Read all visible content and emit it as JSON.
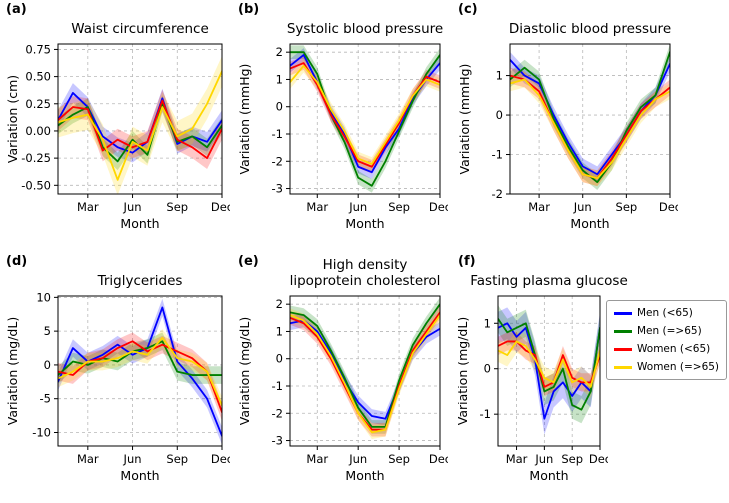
{
  "legend": {
    "items": [
      {
        "label": "Men (<65)",
        "color": "#0000ff"
      },
      {
        "label": "Men (=>65)",
        "color": "#008000"
      },
      {
        "label": "Women (<65)",
        "color": "#ff0000"
      },
      {
        "label": "Women (=>65)",
        "color": "#ffd700"
      }
    ]
  },
  "chart_data": [
    {
      "type": "line",
      "panel": "(a)",
      "title": "Waist circumference",
      "ylabel": "Variation (cm)",
      "xlabel": "Month",
      "ylim": [
        -0.58,
        0.8
      ],
      "ytick_values": [
        -0.5,
        -0.25,
        0.0,
        0.25,
        0.5,
        0.75
      ],
      "ytick_labels": [
        "-0.50",
        "-0.25",
        "0.00",
        "0.25",
        "0.50",
        "0.75"
      ],
      "x_categories": [
        "Jan",
        "Feb",
        "Mar",
        "Apr",
        "May",
        "Jun",
        "Jul",
        "Aug",
        "Sep",
        "Oct",
        "Nov",
        "Dec"
      ],
      "xtick_positions": [
        2,
        5,
        8,
        11
      ],
      "xtick_labels": [
        "Mar",
        "Jun",
        "Sep",
        "Dec"
      ],
      "grid": true,
      "series": [
        {
          "name": "Men (<65)",
          "color": "#0000ff",
          "band": 0.09,
          "values": [
            0.1,
            0.35,
            0.22,
            -0.05,
            -0.15,
            -0.2,
            -0.1,
            0.3,
            -0.12,
            -0.05,
            -0.1,
            0.1
          ]
        },
        {
          "name": "Men (=>65)",
          "color": "#008000",
          "band": 0.08,
          "values": [
            0.05,
            0.15,
            0.22,
            -0.15,
            -0.28,
            -0.08,
            -0.22,
            0.25,
            -0.1,
            -0.05,
            -0.15,
            0.05
          ]
        },
        {
          "name": "Women (<65)",
          "color": "#ff0000",
          "band": 0.1,
          "values": [
            0.1,
            0.22,
            0.2,
            -0.18,
            -0.08,
            -0.15,
            -0.1,
            0.28,
            -0.08,
            -0.15,
            -0.25,
            0.02
          ]
        },
        {
          "name": "Women (=>65)",
          "color": "#ffd700",
          "band": 0.14,
          "values": [
            0.08,
            0.12,
            0.15,
            -0.08,
            -0.45,
            -0.1,
            -0.18,
            0.22,
            -0.05,
            0.02,
            0.25,
            0.55
          ]
        }
      ]
    },
    {
      "type": "line",
      "panel": "(b)",
      "title": "Systolic blood pressure",
      "ylabel": "Variation (mmHg)",
      "xlabel": "Month",
      "ylim": [
        -3.2,
        2.3
      ],
      "ytick_values": [
        -3,
        -2,
        -1,
        0,
        1,
        2
      ],
      "ytick_labels": [
        "-3",
        "-2",
        "-1",
        "0",
        "1",
        "2"
      ],
      "x_categories": [
        "Jan",
        "Feb",
        "Mar",
        "Apr",
        "May",
        "Jun",
        "Jul",
        "Aug",
        "Sep",
        "Oct",
        "Nov",
        "Dec"
      ],
      "xtick_positions": [
        2,
        5,
        8,
        11
      ],
      "xtick_labels": [
        "Mar",
        "Jun",
        "Sep",
        "Dec"
      ],
      "grid": true,
      "series": [
        {
          "name": "Men (<65)",
          "color": "#0000ff",
          "band": 0.25,
          "values": [
            1.5,
            1.9,
            0.9,
            -0.2,
            -1.0,
            -2.2,
            -2.4,
            -1.5,
            -0.8,
            0.3,
            1.0,
            1.6
          ]
        },
        {
          "name": "Men (=>65)",
          "color": "#008000",
          "band": 0.25,
          "values": [
            2.0,
            2.0,
            1.2,
            -0.3,
            -1.3,
            -2.6,
            -2.9,
            -2.0,
            -0.9,
            0.2,
            1.2,
            1.9
          ]
        },
        {
          "name": "Women (<65)",
          "color": "#ff0000",
          "band": 0.25,
          "values": [
            1.4,
            1.6,
            0.8,
            -0.3,
            -1.1,
            -2.0,
            -2.2,
            -1.4,
            -0.6,
            0.4,
            1.1,
            0.9
          ]
        },
        {
          "name": "Women (=>65)",
          "color": "#ffd700",
          "band": 0.25,
          "values": [
            0.9,
            1.5,
            0.9,
            -0.1,
            -0.9,
            -1.9,
            -2.1,
            -1.3,
            -0.5,
            0.4,
            1.0,
            0.8
          ]
        }
      ]
    },
    {
      "type": "line",
      "panel": "(c)",
      "title": "Diastolic blood pressure",
      "ylabel": "Variation (mmHg)",
      "xlabel": "Month",
      "ylim": [
        -2.0,
        1.8
      ],
      "ytick_values": [
        -2,
        -1,
        0,
        1
      ],
      "ytick_labels": [
        "-2",
        "-1",
        "0",
        "1"
      ],
      "x_categories": [
        "Jan",
        "Feb",
        "Mar",
        "Apr",
        "May",
        "Jun",
        "Jul",
        "Aug",
        "Sep",
        "Oct",
        "Nov",
        "Dec"
      ],
      "xtick_positions": [
        2,
        5,
        8,
        11
      ],
      "xtick_labels": [
        "Mar",
        "Jun",
        "Sep",
        "Dec"
      ],
      "grid": true,
      "series": [
        {
          "name": "Men (<65)",
          "color": "#0000ff",
          "band": 0.2,
          "values": [
            1.4,
            1.0,
            0.8,
            0.0,
            -0.7,
            -1.3,
            -1.5,
            -1.0,
            -0.5,
            0.1,
            0.5,
            1.3
          ]
        },
        {
          "name": "Men (=>65)",
          "color": "#008000",
          "band": 0.2,
          "values": [
            0.9,
            1.2,
            0.9,
            -0.1,
            -0.8,
            -1.4,
            -1.7,
            -1.2,
            -0.4,
            0.2,
            0.5,
            1.6
          ]
        },
        {
          "name": "Women (<65)",
          "color": "#ff0000",
          "band": 0.2,
          "values": [
            1.0,
            0.9,
            0.6,
            -0.2,
            -0.9,
            -1.5,
            -1.6,
            -1.1,
            -0.5,
            0.1,
            0.4,
            0.7
          ]
        },
        {
          "name": "Women (=>65)",
          "color": "#ffd700",
          "band": 0.2,
          "values": [
            0.8,
            0.9,
            0.5,
            -0.2,
            -0.9,
            -1.5,
            -1.6,
            -1.2,
            -0.6,
            0.0,
            0.4,
            0.6
          ]
        }
      ]
    },
    {
      "type": "line",
      "panel": "(d)",
      "title": "Triglycerides",
      "ylabel": "Variation (mg/dL)",
      "xlabel": "Month",
      "ylim": [
        -12,
        10.2
      ],
      "ytick_values": [
        -10,
        -5,
        0,
        5,
        10
      ],
      "ytick_labels": [
        "-10",
        "-5",
        "0",
        "5",
        "10"
      ],
      "x_categories": [
        "Jan",
        "Feb",
        "Mar",
        "Apr",
        "May",
        "Jun",
        "Jul",
        "Aug",
        "Sep",
        "Oct",
        "Nov",
        "Dec"
      ],
      "xtick_positions": [
        2,
        5,
        8,
        11
      ],
      "xtick_labels": [
        "Mar",
        "Jun",
        "Sep",
        "Dec"
      ],
      "grid": true,
      "series": [
        {
          "name": "Men (<65)",
          "color": "#0000ff",
          "band": 1.3,
          "values": [
            -2.5,
            2.5,
            0.5,
            1.5,
            3.0,
            1.5,
            2.5,
            8.5,
            0.5,
            -2.0,
            -5.0,
            -10.5
          ]
        },
        {
          "name": "Men (=>65)",
          "color": "#008000",
          "band": 1.3,
          "values": [
            -1.5,
            0.5,
            0.0,
            1.0,
            0.5,
            2.0,
            2.5,
            3.5,
            -1.0,
            -1.5,
            -1.5,
            -1.5
          ]
        },
        {
          "name": "Women (<65)",
          "color": "#ff0000",
          "band": 1.3,
          "values": [
            -1.0,
            -1.5,
            0.5,
            1.0,
            2.5,
            3.5,
            2.0,
            3.0,
            2.0,
            1.0,
            -1.0,
            -7.0
          ]
        },
        {
          "name": "Women (=>65)",
          "color": "#ffd700",
          "band": 1.3,
          "values": [
            -2.0,
            -1.0,
            0.5,
            0.5,
            1.0,
            2.0,
            1.5,
            4.0,
            1.0,
            0.5,
            -1.0,
            -6.0
          ]
        }
      ]
    },
    {
      "type": "line",
      "panel": "(e)",
      "title": "High density\nlipoprotein cholesterol",
      "ylabel": "Variation (mg/dL)",
      "xlabel": "Month",
      "ylim": [
        -3.2,
        2.3
      ],
      "ytick_values": [
        -3,
        -2,
        -1,
        0,
        1,
        2
      ],
      "ytick_labels": [
        "-3",
        "-2",
        "-1",
        "0",
        "1",
        "2"
      ],
      "x_categories": [
        "Jan",
        "Feb",
        "Mar",
        "Apr",
        "May",
        "Jun",
        "Jul",
        "Aug",
        "Sep",
        "Oct",
        "Nov",
        "Dec"
      ],
      "xtick_positions": [
        2,
        5,
        8,
        11
      ],
      "xtick_labels": [
        "Mar",
        "Jun",
        "Sep",
        "Dec"
      ],
      "grid": true,
      "series": [
        {
          "name": "Men (<65)",
          "color": "#0000ff",
          "band": 0.25,
          "values": [
            1.3,
            1.4,
            1.0,
            0.2,
            -0.8,
            -1.6,
            -2.1,
            -2.2,
            -1.0,
            0.2,
            0.8,
            1.1
          ]
        },
        {
          "name": "Men (=>65)",
          "color": "#008000",
          "band": 0.25,
          "values": [
            1.7,
            1.6,
            1.2,
            0.3,
            -0.7,
            -1.8,
            -2.5,
            -2.5,
            -0.8,
            0.5,
            1.3,
            2.0
          ]
        },
        {
          "name": "Women (<65)",
          "color": "#ff0000",
          "band": 0.25,
          "values": [
            1.5,
            1.3,
            0.8,
            0.0,
            -1.0,
            -2.0,
            -2.6,
            -2.6,
            -1.0,
            0.3,
            1.0,
            1.7
          ]
        },
        {
          "name": "Women (=>65)",
          "color": "#ffd700",
          "band": 0.25,
          "values": [
            1.6,
            1.4,
            0.9,
            0.1,
            -0.9,
            -2.0,
            -2.7,
            -2.6,
            -1.1,
            0.2,
            0.9,
            1.6
          ]
        }
      ]
    },
    {
      "type": "line",
      "panel": "(f)",
      "title": "Fasting plasma glucose",
      "ylabel": "Variation (mg/dL)",
      "xlabel": "Month",
      "ylim": [
        -1.7,
        1.6
      ],
      "ytick_values": [
        -1,
        0,
        1
      ],
      "ytick_labels": [
        "-1",
        "0",
        "1"
      ],
      "x_categories": [
        "Jan",
        "Feb",
        "Mar",
        "Apr",
        "May",
        "Jun",
        "Jul",
        "Aug",
        "Sep",
        "Oct",
        "Nov",
        "Dec"
      ],
      "xtick_positions": [
        2,
        5,
        8,
        11
      ],
      "xtick_labels": [
        "Mar",
        "Jun",
        "Sep",
        "Dec"
      ],
      "grid": true,
      "series": [
        {
          "name": "Men (<65)",
          "color": "#0000ff",
          "band": 0.35,
          "values": [
            0.9,
            1.0,
            0.7,
            0.9,
            0.2,
            -1.1,
            -0.5,
            -0.3,
            -0.6,
            -0.3,
            -0.5,
            0.9
          ]
        },
        {
          "name": "Men (=>65)",
          "color": "#008000",
          "band": 0.3,
          "values": [
            1.1,
            0.8,
            0.9,
            1.0,
            0.3,
            -0.5,
            -0.4,
            0.0,
            -0.8,
            -0.9,
            -0.5,
            0.9
          ]
        },
        {
          "name": "Women (<65)",
          "color": "#ff0000",
          "band": 0.2,
          "values": [
            0.5,
            0.6,
            0.6,
            0.4,
            0.3,
            -0.4,
            -0.3,
            0.3,
            -0.2,
            -0.3,
            -0.3,
            0.3
          ]
        },
        {
          "name": "Women (=>65)",
          "color": "#ffd700",
          "band": 0.25,
          "values": [
            0.4,
            0.3,
            0.6,
            0.5,
            0.2,
            -0.2,
            -0.3,
            0.2,
            -0.3,
            -0.2,
            -0.4,
            0.4
          ]
        }
      ]
    }
  ]
}
